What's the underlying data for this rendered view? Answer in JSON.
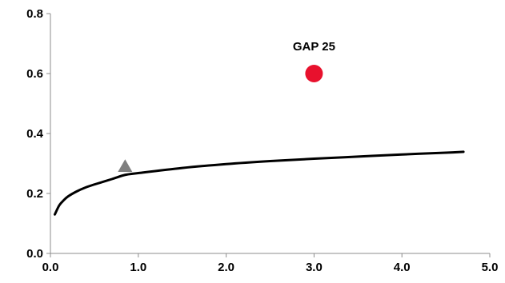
{
  "chart_data": {
    "type": "scatter",
    "xlim": [
      0.0,
      5.0
    ],
    "ylim": [
      0.0,
      0.8
    ],
    "grid": false,
    "x_ticks": [
      "0.0",
      "1.0",
      "2.0",
      "3.0",
      "4.0",
      "5.0"
    ],
    "y_ticks": [
      "0.0",
      "0.2",
      "0.4",
      "0.6",
      "0.8"
    ],
    "series": [
      {
        "kind": "line",
        "color": "#000000",
        "x": [
          0.05,
          0.1,
          0.15,
          0.2,
          0.3,
          0.4,
          0.5,
          0.7,
          0.85,
          1.0,
          1.5,
          2.0,
          2.5,
          3.0,
          3.5,
          4.0,
          4.5,
          4.7
        ],
        "y": [
          0.13,
          0.16,
          0.177,
          0.19,
          0.207,
          0.22,
          0.23,
          0.248,
          0.262,
          0.268,
          0.285,
          0.298,
          0.308,
          0.316,
          0.323,
          0.33,
          0.336,
          0.339
        ]
      },
      {
        "kind": "marker",
        "marker": "triangle",
        "color": "#7f7f7f",
        "x": [
          0.85
        ],
        "y": [
          0.29
        ]
      },
      {
        "kind": "marker",
        "marker": "circle",
        "color": "#e8112d",
        "x": [
          3.0
        ],
        "y": [
          0.6
        ]
      }
    ],
    "annotations": [
      {
        "text": "GAP 25",
        "x": 3.0,
        "y": 0.6
      }
    ]
  }
}
